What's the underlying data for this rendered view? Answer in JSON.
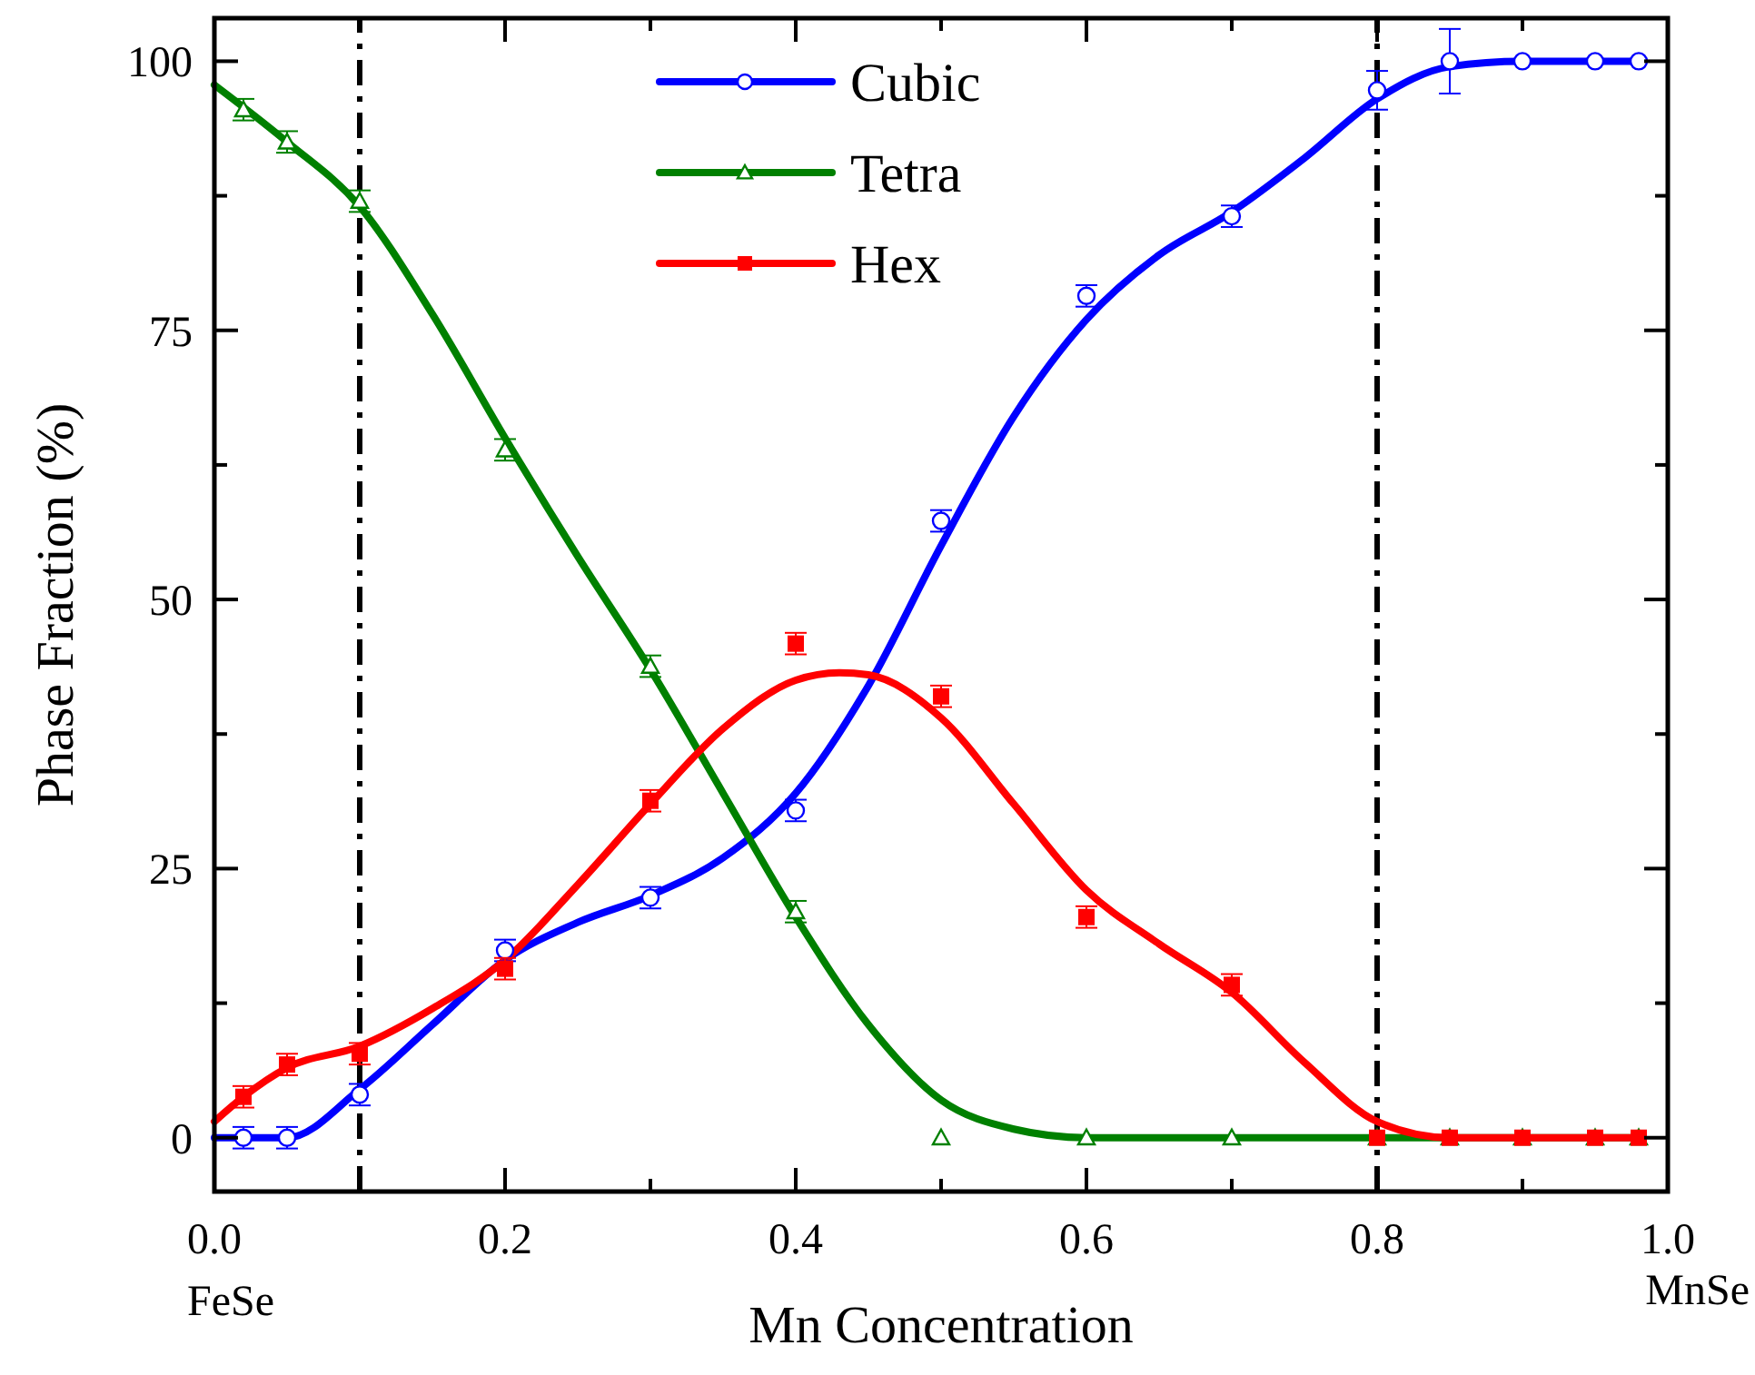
{
  "chart_data": {
    "type": "scatter",
    "xlabel": "Mn Concentration",
    "ylabel": "Phase Fraction (%)",
    "xlim": [
      0,
      1
    ],
    "ylim": [
      -5,
      104
    ],
    "xticks": [
      {
        "value": 0,
        "label": "0.0"
      },
      {
        "value": 0.1,
        "label": null
      },
      {
        "value": 0.2,
        "label": "0.2"
      },
      {
        "value": 0.3,
        "label": null
      },
      {
        "value": 0.4,
        "label": "0.4"
      },
      {
        "value": 0.5,
        "label": null
      },
      {
        "value": 0.6,
        "label": "0.6"
      },
      {
        "value": 0.7,
        "label": null
      },
      {
        "value": 0.8,
        "label": "0.8"
      },
      {
        "value": 0.9,
        "label": null
      },
      {
        "value": 1,
        "label": "1.0"
      }
    ],
    "yticks": [
      0,
      {
        "value": 12.5,
        "label": null
      },
      25,
      {
        "value": 37.5,
        "label": null
      },
      50,
      {
        "value": 62.5,
        "label": null
      },
      75,
      {
        "value": 87.5,
        "label": null
      },
      100
    ],
    "grid": false,
    "legend": "top",
    "annotations": [
      "FeSe",
      "MnSe"
    ],
    "ref_lines": [
      {
        "axis": "x",
        "value": 0.1,
        "color": "#000000",
        "line_style": "dashed"
      },
      {
        "axis": "x",
        "value": 0.8,
        "color": "#000000",
        "line_style": "dashed"
      }
    ],
    "series": [
      {
        "type": "line",
        "color": "#0000ff",
        "marker": "none",
        "x": [
          0,
          0.05,
          0.1,
          0.15,
          0.2,
          0.25,
          0.3,
          0.35,
          0.4,
          0.45,
          0.5,
          0.55,
          0.6,
          0.65,
          0.7,
          0.75,
          0.8,
          0.85,
          0.9,
          0.98
        ],
        "values": [
          0,
          0,
          4.5,
          10.5,
          16.5,
          20,
          22.5,
          26,
          32,
          42,
          55,
          67,
          76,
          82,
          86,
          91,
          96.5,
          99.5,
          100,
          100
        ]
      },
      {
        "type": "line",
        "color": "#008000",
        "marker": "none",
        "x": [
          0,
          0.05,
          0.1,
          0.15,
          0.2,
          0.25,
          0.3,
          0.35,
          0.4,
          0.45,
          0.5,
          0.55,
          0.6,
          0.98
        ],
        "values": [
          97.8,
          92.5,
          86.5,
          76.5,
          65,
          54,
          43.5,
          32,
          20.5,
          10.5,
          3.5,
          0.8,
          0,
          0
        ]
      },
      {
        "type": "line",
        "color": "#ff0000",
        "marker": "none",
        "x": [
          0,
          0.02,
          0.05,
          0.1,
          0.15,
          0.2,
          0.25,
          0.3,
          0.35,
          0.4,
          0.43,
          0.45,
          0.5,
          0.55,
          0.6,
          0.65,
          0.7,
          0.75,
          0.8,
          0.85,
          0.98
        ],
        "values": [
          1.5,
          3.8,
          6.5,
          8.5,
          12,
          16.5,
          23.5,
          31,
          38,
          42.5,
          43.2,
          43,
          39,
          31,
          23,
          18,
          13.5,
          7,
          1.5,
          0,
          0
        ]
      },
      {
        "name": "Cubic",
        "color": "#0000ff",
        "marker": "circle",
        "x": [
          0.02,
          0.05,
          0.1,
          0.2,
          0.3,
          0.4,
          0.5,
          0.6,
          0.7,
          0.8,
          0.85,
          0.9,
          0.95,
          0.98
        ],
        "values": [
          0,
          0,
          4,
          17.4,
          22.3,
          30.4,
          57.3,
          78.2,
          85.6,
          97.3,
          100,
          100,
          100,
          100
        ],
        "errors": [
          1,
          1,
          1,
          1,
          1,
          1,
          1,
          1,
          1,
          1.8,
          3,
          null,
          null,
          null
        ]
      },
      {
        "name": "Tetra",
        "color": "#008000",
        "marker": "triangle",
        "x": [
          0.02,
          0.05,
          0.1,
          0.2,
          0.3,
          0.4,
          0.5,
          0.6,
          0.7,
          0.8,
          0.85,
          0.9,
          0.95,
          0.98
        ],
        "values": [
          95.5,
          92.5,
          87,
          63.9,
          43.8,
          21,
          0,
          0,
          0,
          0,
          0,
          0,
          0,
          0
        ],
        "errors": [
          1,
          1,
          1,
          1,
          1,
          1,
          null,
          null,
          null,
          null,
          null,
          null,
          null,
          null
        ]
      },
      {
        "name": "Hex",
        "color": "#ff0000",
        "marker": "square",
        "x": [
          0.02,
          0.05,
          0.1,
          0.2,
          0.3,
          0.4,
          0.5,
          0.6,
          0.7,
          0.8,
          0.85,
          0.9,
          0.95,
          0.98
        ],
        "values": [
          3.8,
          6.8,
          7.8,
          15.7,
          31.3,
          45.9,
          41,
          20.5,
          14.2,
          0,
          0,
          0,
          0,
          0
        ],
        "errors": [
          1,
          1,
          1,
          1,
          1,
          1,
          1,
          1,
          1,
          null,
          null,
          null,
          null,
          null
        ]
      }
    ]
  }
}
